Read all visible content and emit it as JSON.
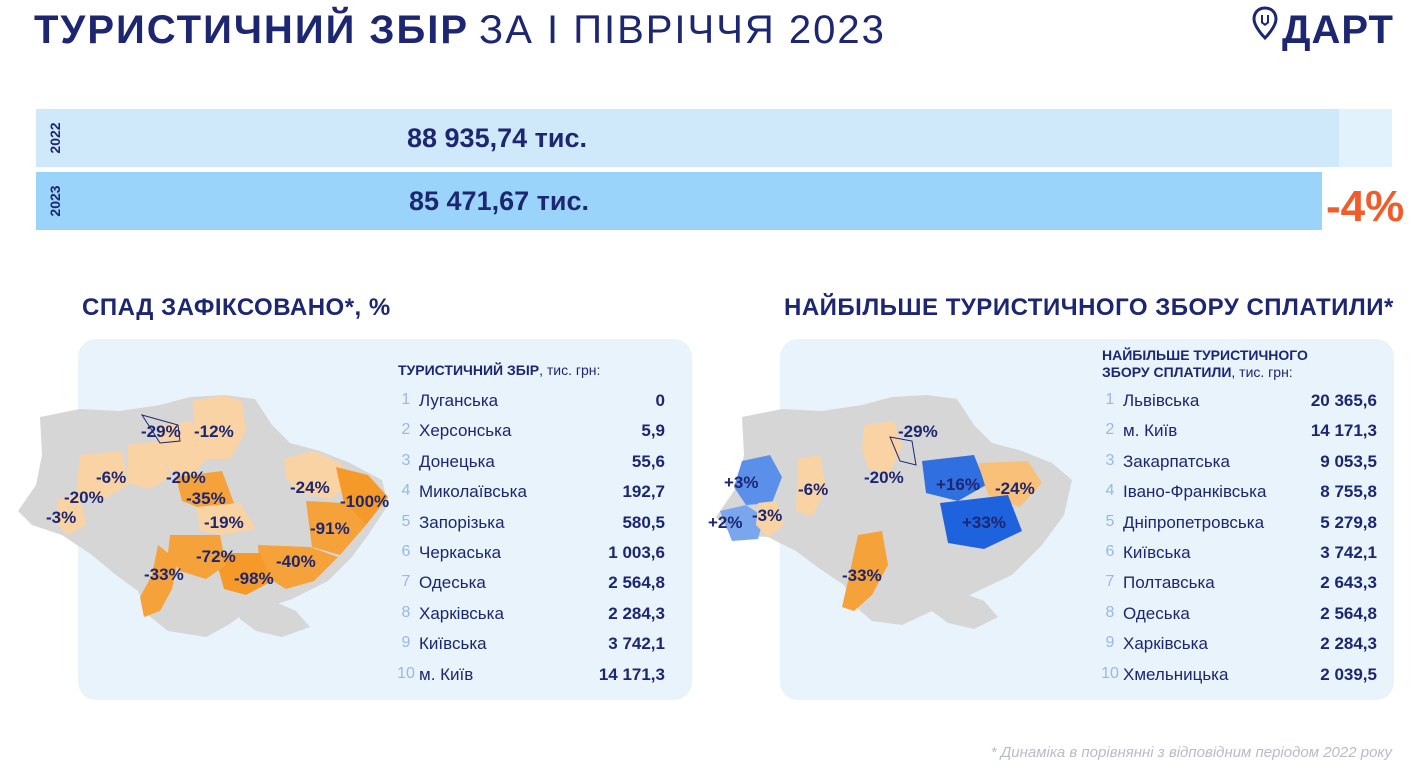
{
  "header": {
    "title_bold": "ТУРИСТИЧНИЙ ЗБІР",
    "title_light": "ЗА І ПІВРІЧЧЯ 2023",
    "logo_text": "ДАРТ"
  },
  "comparison": {
    "rows": [
      {
        "year": "2022",
        "value_text": "88 935,74  тис.",
        "value": 88935.74
      },
      {
        "year": "2023",
        "value_text": "85 471,67  тис.",
        "value": 85471.67
      }
    ],
    "change": "-4%"
  },
  "left": {
    "section_title": "СПАД ЗАФІКСОВАНО*, %",
    "table_title": "ТУРИСТИЧНИЙ ЗБІР",
    "table_unit": ", тис. грн:",
    "rows": [
      {
        "rank": "1",
        "name": "Луганська",
        "value": "0"
      },
      {
        "rank": "2",
        "name": "Херсонська",
        "value": "5,9"
      },
      {
        "rank": "3",
        "name": "Донецька",
        "value": "55,6"
      },
      {
        "rank": "4",
        "name": "Миколаївська",
        "value": "192,7"
      },
      {
        "rank": "5",
        "name": "Запорізька",
        "value": "580,5"
      },
      {
        "rank": "6",
        "name": "Черкаська",
        "value": "1 003,6"
      },
      {
        "rank": "7",
        "name": "Одеська",
        "value": "2 564,8"
      },
      {
        "rank": "8",
        "name": "Харківська",
        "value": "2 284,3"
      },
      {
        "rank": "9",
        "name": "Київська",
        "value": "3 742,1"
      },
      {
        "rank": "10",
        "name": "м. Київ",
        "value": "14 171,3"
      }
    ],
    "map_labels": [
      "-29%",
      "-12%",
      "-6%",
      "-20%",
      "-20%",
      "-3%",
      "-35%",
      "-19%",
      "-24%",
      "-100%",
      "-91%",
      "-72%",
      "-33%",
      "-98%",
      "-40%"
    ]
  },
  "right": {
    "section_title": "НАЙБІЛЬШЕ ТУРИСТИЧНОГО ЗБОРУ СПЛАТИЛИ*",
    "table_title_1": "НАЙБІЛЬШЕ ТУРИСТИЧНОГО",
    "table_title_2": "ЗБОРУ СПЛАТИЛИ",
    "table_unit": ", тис. грн:",
    "rows": [
      {
        "rank": "1",
        "name": "Львівська",
        "value": "20 365,6"
      },
      {
        "rank": "2",
        "name": "м. Київ",
        "value": "14 171,3"
      },
      {
        "rank": "3",
        "name": "Закарпатська",
        "value": "9 053,5"
      },
      {
        "rank": "4",
        "name": "Івано-Франківська",
        "value": "8 755,8"
      },
      {
        "rank": "5",
        "name": "Дніпропетровська",
        "value": "5 279,8"
      },
      {
        "rank": "6",
        "name": "Київська",
        "value": "3 742,1"
      },
      {
        "rank": "7",
        "name": "Полтавська",
        "value": "2 643,3"
      },
      {
        "rank": "8",
        "name": "Одеська",
        "value": "2 564,8"
      },
      {
        "rank": "9",
        "name": "Харківська",
        "value": "2 284,3"
      },
      {
        "rank": "10",
        "name": "Хмельницька",
        "value": "2 039,5"
      }
    ],
    "map_labels": [
      "-29%",
      "+3%",
      "-6%",
      "-20%",
      "+16%",
      "-24%",
      "+2%",
      "-3%",
      "+33%",
      "-33%"
    ]
  },
  "footnote": "* Динаміка в порівнянні з відповідним періодом 2022 року",
  "colors": {
    "navy": "#1d2671",
    "bar_2022": "#cfe9fb",
    "bar_2023": "#9bd4fb",
    "change": "#f25c2b",
    "panel": "#e8f3fb",
    "decline_strong": "#f5a23a",
    "decline_light": "#f9d3a3",
    "growth_strong": "#2f6fe0",
    "growth_light": "#7aa6ee",
    "neutral": "#d6d6d6"
  },
  "chart_data": [
    {
      "type": "bar",
      "categories": [
        "2022",
        "2023"
      ],
      "values": [
        88935.74,
        85471.67
      ],
      "annotations": [
        "-4%"
      ]
    },
    {
      "type": "table",
      "title": "ТУРИСТИЧНИЙ ЗБІР, тис. грн:",
      "categories": [
        "Луганська",
        "Херсонська",
        "Донецька",
        "Миколаївська",
        "Запорізька",
        "Черкаська",
        "Одеська",
        "Харківська",
        "Київська",
        "м. Київ"
      ],
      "values": [
        0,
        5.9,
        55.6,
        192.7,
        580.5,
        1003.6,
        2564.8,
        2284.3,
        3742.1,
        14171.3
      ]
    },
    {
      "type": "table",
      "title": "НАЙБІЛЬШЕ ТУРИСТИЧНОГО ЗБОРУ СПЛАТИЛИ, тис. грн:",
      "categories": [
        "Львівська",
        "м. Київ",
        "Закарпатська",
        "Івано-Франківська",
        "Дніпропетровська",
        "Київська",
        "Полтавська",
        "Одеська",
        "Харківська",
        "Хмельницька"
      ],
      "values": [
        20365.6,
        14171.3,
        9053.5,
        8755.8,
        5279.8,
        3742.1,
        2643.3,
        2564.8,
        2284.3,
        2039.5
      ]
    }
  ]
}
